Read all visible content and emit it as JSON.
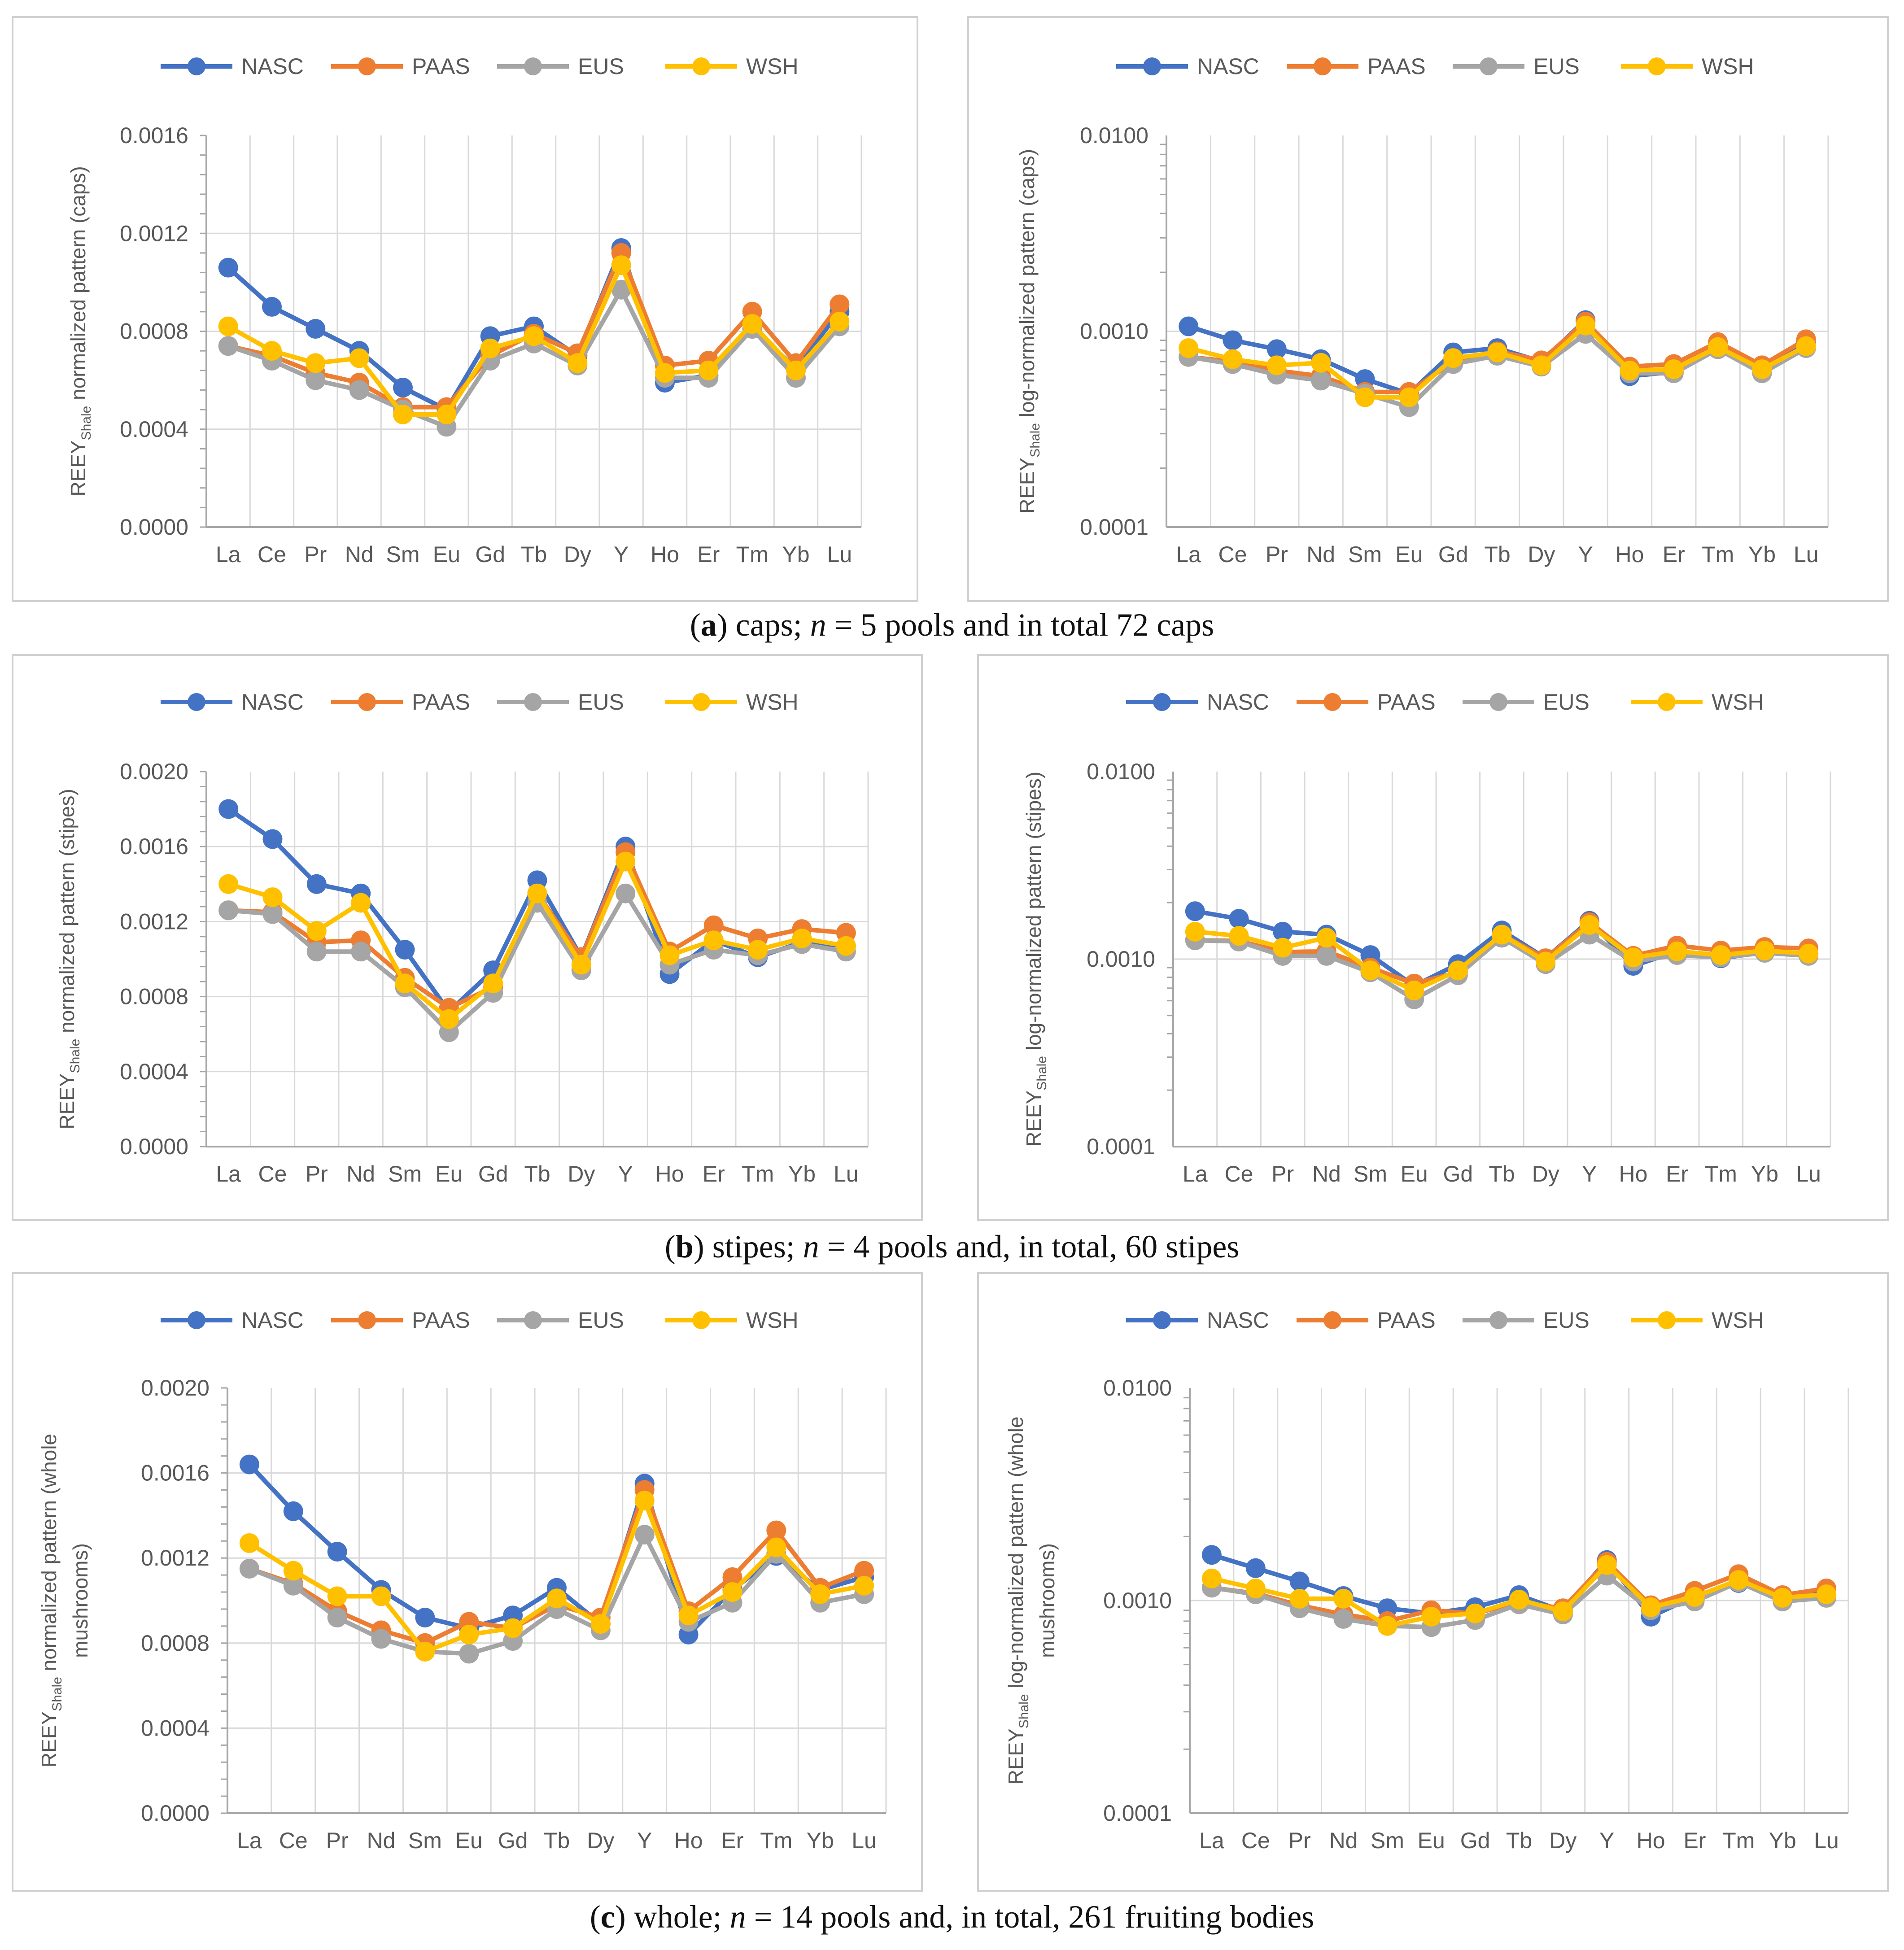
{
  "colors": {
    "NASC": "#4472C4",
    "PAAS": "#ED7D31",
    "EUS": "#A5A5A5",
    "WSH": "#FFC000"
  },
  "legend": [
    "NASC",
    "PAAS",
    "EUS",
    "WSH"
  ],
  "captions": [
    {
      "letter": "a",
      "pre": "caps; ",
      "n": "n",
      "post": " = 5 pools and in total 72 caps"
    },
    {
      "letter": "b",
      "pre": "stipes; ",
      "n": "n",
      "post": " = 4 pools and, in total, 60 stipes"
    },
    {
      "letter": "c",
      "pre": "whole; ",
      "n": "n",
      "post": " = 14 pools and, in total, 261 fruiting bodies"
    }
  ],
  "chart_data": [
    {
      "type": "line",
      "scale": "linear",
      "panel": "a-left",
      "ylabel_main": "REEY",
      "ylabel_sub": "Shale",
      "ylabel_rest": " normalized pattern (caps)",
      "categories": [
        "La",
        "Ce",
        "Pr",
        "Nd",
        "Sm",
        "Eu",
        "Gd",
        "Tb",
        "Dy",
        "Y",
        "Ho",
        "Er",
        "Tm",
        "Yb",
        "Lu"
      ],
      "ylim": [
        0,
        0.0016
      ],
      "yticks": [
        "0.0000",
        "0.0004",
        "0.0008",
        "0.0012",
        "0.0016"
      ],
      "legend_position": "top",
      "series": [
        {
          "name": "NASC",
          "values": [
            0.00106,
            0.0009,
            0.00081,
            0.00072,
            0.00057,
            0.00048,
            0.00078,
            0.00082,
            0.0007,
            0.00114,
            0.00059,
            0.00062,
            0.00081,
            0.00065,
            0.00088
          ]
        },
        {
          "name": "PAAS",
          "values": [
            0.00074,
            0.0007,
            0.00063,
            0.00059,
            0.00049,
            0.00049,
            0.0007,
            0.00079,
            0.00071,
            0.00112,
            0.00066,
            0.00068,
            0.00088,
            0.00067,
            0.00091
          ]
        },
        {
          "name": "EUS",
          "values": [
            0.00074,
            0.00068,
            0.0006,
            0.00056,
            0.00048,
            0.00041,
            0.00068,
            0.00075,
            0.00066,
            0.00097,
            0.00061,
            0.00061,
            0.00081,
            0.00061,
            0.00082
          ]
        },
        {
          "name": "WSH",
          "values": [
            0.00082,
            0.00072,
            0.00067,
            0.00069,
            0.00046,
            0.00046,
            0.00073,
            0.00078,
            0.00067,
            0.00107,
            0.00063,
            0.00064,
            0.00083,
            0.00064,
            0.00084
          ]
        }
      ]
    },
    {
      "type": "line",
      "scale": "log",
      "panel": "a-right",
      "ylabel_main": "REEY",
      "ylabel_sub": "Shale",
      "ylabel_rest": " log-normalized pattern (caps)",
      "categories": [
        "La",
        "Ce",
        "Pr",
        "Nd",
        "Sm",
        "Eu",
        "Gd",
        "Tb",
        "Dy",
        "Y",
        "Ho",
        "Er",
        "Tm",
        "Yb",
        "Lu"
      ],
      "ylim": [
        0.0001,
        0.01
      ],
      "yticks": [
        "0.0001",
        "0.0010",
        "0.0100"
      ],
      "legend_position": "top",
      "series": [
        {
          "name": "NASC",
          "values": [
            0.00106,
            0.0009,
            0.00081,
            0.00072,
            0.00057,
            0.00048,
            0.00078,
            0.00082,
            0.0007,
            0.00114,
            0.00059,
            0.00062,
            0.00081,
            0.00065,
            0.00088
          ]
        },
        {
          "name": "PAAS",
          "values": [
            0.00074,
            0.0007,
            0.00063,
            0.00059,
            0.00049,
            0.00049,
            0.0007,
            0.00079,
            0.00071,
            0.00112,
            0.00066,
            0.00068,
            0.00088,
            0.00067,
            0.00091
          ]
        },
        {
          "name": "EUS",
          "values": [
            0.00074,
            0.00068,
            0.0006,
            0.00056,
            0.00048,
            0.00041,
            0.00068,
            0.00075,
            0.00066,
            0.00097,
            0.00061,
            0.00061,
            0.00081,
            0.00061,
            0.00082
          ]
        },
        {
          "name": "WSH",
          "values": [
            0.00082,
            0.00072,
            0.00067,
            0.00069,
            0.00046,
            0.00046,
            0.00073,
            0.00078,
            0.00067,
            0.00107,
            0.00063,
            0.00064,
            0.00083,
            0.00064,
            0.00084
          ]
        }
      ]
    },
    {
      "type": "line",
      "scale": "linear",
      "panel": "b-left",
      "ylabel_main": "REEY",
      "ylabel_sub": "Shale",
      "ylabel_rest": " normalized pattern (stipes)",
      "categories": [
        "La",
        "Ce",
        "Pr",
        "Nd",
        "Sm",
        "Eu",
        "Gd",
        "Tb",
        "Dy",
        "Y",
        "Ho",
        "Er",
        "Tm",
        "Yb",
        "Lu"
      ],
      "ylim": [
        0,
        0.002
      ],
      "yticks": [
        "0.0000",
        "0.0004",
        "0.0008",
        "0.0012",
        "0.0016",
        "0.0020"
      ],
      "legend_position": "top",
      "series": [
        {
          "name": "NASC",
          "values": [
            0.0018,
            0.00164,
            0.0014,
            0.00135,
            0.00105,
            0.00072,
            0.00094,
            0.00142,
            0.00101,
            0.0016,
            0.00092,
            0.0011,
            0.00101,
            0.00109,
            0.00107
          ]
        },
        {
          "name": "PAAS",
          "values": [
            0.00126,
            0.00125,
            0.00109,
            0.0011,
            0.0009,
            0.00074,
            0.00085,
            0.00135,
            0.00101,
            0.00157,
            0.00104,
            0.00118,
            0.00111,
            0.00116,
            0.00114
          ]
        },
        {
          "name": "EUS",
          "values": [
            0.00126,
            0.00124,
            0.00104,
            0.00104,
            0.00085,
            0.00061,
            0.00082,
            0.0013,
            0.00094,
            0.00135,
            0.00097,
            0.00105,
            0.00102,
            0.00108,
            0.00104
          ]
        },
        {
          "name": "WSH",
          "values": [
            0.0014,
            0.00133,
            0.00115,
            0.0013,
            0.00087,
            0.00068,
            0.00087,
            0.00135,
            0.00097,
            0.00152,
            0.00102,
            0.0011,
            0.00105,
            0.00111,
            0.00107
          ]
        }
      ]
    },
    {
      "type": "line",
      "scale": "log",
      "panel": "b-right",
      "ylabel_main": "REEY",
      "ylabel_sub": "Shale",
      "ylabel_rest": " log-normalized pattern (stipes)",
      "categories": [
        "La",
        "Ce",
        "Pr",
        "Nd",
        "Sm",
        "Eu",
        "Gd",
        "Tb",
        "Dy",
        "Y",
        "Ho",
        "Er",
        "Tm",
        "Yb",
        "Lu"
      ],
      "ylim": [
        0.0001,
        0.01
      ],
      "yticks": [
        "0.0001",
        "0.0010",
        "0.0100"
      ],
      "legend_position": "top",
      "series": [
        {
          "name": "NASC",
          "values": [
            0.0018,
            0.00164,
            0.0014,
            0.00135,
            0.00105,
            0.00072,
            0.00094,
            0.00142,
            0.00101,
            0.0016,
            0.00092,
            0.0011,
            0.00101,
            0.00109,
            0.00107
          ]
        },
        {
          "name": "PAAS",
          "values": [
            0.00126,
            0.00125,
            0.00109,
            0.0011,
            0.0009,
            0.00074,
            0.00085,
            0.00135,
            0.00101,
            0.00157,
            0.00104,
            0.00118,
            0.00111,
            0.00116,
            0.00114
          ]
        },
        {
          "name": "EUS",
          "values": [
            0.00126,
            0.00124,
            0.00104,
            0.00104,
            0.00085,
            0.00061,
            0.00082,
            0.0013,
            0.00094,
            0.00135,
            0.00097,
            0.00105,
            0.00102,
            0.00108,
            0.00104
          ]
        },
        {
          "name": "WSH",
          "values": [
            0.0014,
            0.00133,
            0.00115,
            0.0013,
            0.00087,
            0.00068,
            0.00087,
            0.00135,
            0.00097,
            0.00152,
            0.00102,
            0.0011,
            0.00105,
            0.00111,
            0.00107
          ]
        }
      ]
    },
    {
      "type": "line",
      "scale": "linear",
      "panel": "c-left",
      "ylabel_main": "REEY",
      "ylabel_sub": "Shale",
      "ylabel_rest": " normalized pattern (whole",
      "ylabel_line2": "mushrooms)",
      "categories": [
        "La",
        "Ce",
        "Pr",
        "Nd",
        "Sm",
        "Eu",
        "Gd",
        "Tb",
        "Dy",
        "Y",
        "Ho",
        "Er",
        "Tm",
        "Yb",
        "Lu"
      ],
      "ylim": [
        0,
        0.002
      ],
      "yticks": [
        "0.0000",
        "0.0004",
        "0.0008",
        "0.0012",
        "0.0016",
        "0.0020"
      ],
      "legend_position": "top",
      "series": [
        {
          "name": "NASC",
          "values": [
            0.00164,
            0.00142,
            0.00123,
            0.00105,
            0.00092,
            0.00087,
            0.00093,
            0.00106,
            0.00089,
            0.00155,
            0.00084,
            0.00105,
            0.00121,
            0.00105,
            0.00111
          ]
        },
        {
          "name": "PAAS",
          "values": [
            0.00115,
            0.00108,
            0.00095,
            0.00086,
            0.0008,
            0.0009,
            0.00087,
            0.00098,
            0.00092,
            0.00152,
            0.00095,
            0.00111,
            0.00133,
            0.00106,
            0.00114
          ]
        },
        {
          "name": "EUS",
          "values": [
            0.00115,
            0.00107,
            0.00092,
            0.00082,
            0.00076,
            0.00075,
            0.00081,
            0.00096,
            0.00086,
            0.00131,
            0.0009,
            0.00099,
            0.00122,
            0.00099,
            0.00103
          ]
        },
        {
          "name": "WSH",
          "values": [
            0.00127,
            0.00114,
            0.00102,
            0.00102,
            0.00076,
            0.00084,
            0.00087,
            0.00101,
            0.00089,
            0.00147,
            0.00093,
            0.00104,
            0.00125,
            0.00103,
            0.00107
          ]
        }
      ]
    },
    {
      "type": "line",
      "scale": "log",
      "panel": "c-right",
      "ylabel_main": "REEY",
      "ylabel_sub": "Shale",
      "ylabel_rest": " log-normalized pattern (whole",
      "ylabel_line2": "mushrooms)",
      "categories": [
        "La",
        "Ce",
        "Pr",
        "Nd",
        "Sm",
        "Eu",
        "Gd",
        "Tb",
        "Dy",
        "Y",
        "Ho",
        "Er",
        "Tm",
        "Yb",
        "Lu"
      ],
      "ylim": [
        0.0001,
        0.01
      ],
      "yticks": [
        "0.0001",
        "0.0010",
        "0.0100"
      ],
      "legend_position": "top",
      "series": [
        {
          "name": "NASC",
          "values": [
            0.00164,
            0.00142,
            0.00123,
            0.00105,
            0.00092,
            0.00087,
            0.00093,
            0.00106,
            0.00089,
            0.00155,
            0.00084,
            0.00105,
            0.00121,
            0.00105,
            0.00111
          ]
        },
        {
          "name": "PAAS",
          "values": [
            0.00115,
            0.00108,
            0.00095,
            0.00086,
            0.0008,
            0.0009,
            0.00087,
            0.00098,
            0.00092,
            0.00152,
            0.00095,
            0.00111,
            0.00133,
            0.00106,
            0.00114
          ]
        },
        {
          "name": "EUS",
          "values": [
            0.00115,
            0.00107,
            0.00092,
            0.00082,
            0.00076,
            0.00075,
            0.00081,
            0.00096,
            0.00086,
            0.00131,
            0.0009,
            0.00099,
            0.00122,
            0.00099,
            0.00103
          ]
        },
        {
          "name": "WSH",
          "values": [
            0.00127,
            0.00114,
            0.00102,
            0.00102,
            0.00076,
            0.00084,
            0.00087,
            0.00101,
            0.00089,
            0.00147,
            0.00093,
            0.00104,
            0.00125,
            0.00103,
            0.00107
          ]
        }
      ]
    }
  ]
}
